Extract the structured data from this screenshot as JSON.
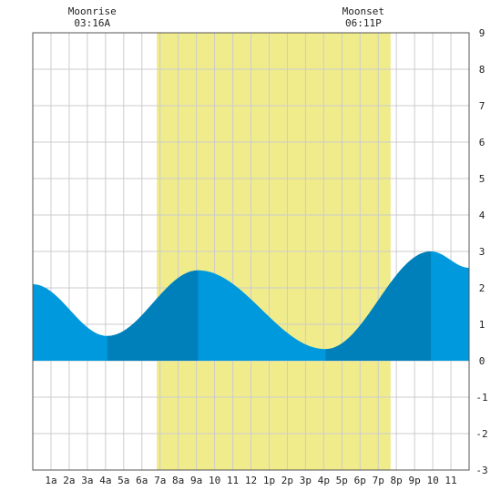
{
  "chart_data": {
    "type": "area",
    "title": "",
    "xlabel": "",
    "ylabel": "",
    "ylim": [
      -3,
      9
    ],
    "xlim": [
      0,
      24
    ],
    "yticks": [
      -3,
      -2,
      -1,
      0,
      1,
      2,
      3,
      4,
      5,
      6,
      7,
      8,
      9
    ],
    "xticks": [
      {
        "x": 1,
        "label": "1a"
      },
      {
        "x": 2,
        "label": "2a"
      },
      {
        "x": 3,
        "label": "3a"
      },
      {
        "x": 4,
        "label": "4a"
      },
      {
        "x": 5,
        "label": "5a"
      },
      {
        "x": 6,
        "label": "6a"
      },
      {
        "x": 7,
        "label": "7a"
      },
      {
        "x": 8,
        "label": "8a"
      },
      {
        "x": 9,
        "label": "9a"
      },
      {
        "x": 10,
        "label": "10"
      },
      {
        "x": 11,
        "label": "11"
      },
      {
        "x": 12,
        "label": "12"
      },
      {
        "x": 13,
        "label": "1p"
      },
      {
        "x": 14,
        "label": "2p"
      },
      {
        "x": 15,
        "label": "3p"
      },
      {
        "x": 16,
        "label": "4p"
      },
      {
        "x": 17,
        "label": "5p"
      },
      {
        "x": 18,
        "label": "6p"
      },
      {
        "x": 19,
        "label": "7p"
      },
      {
        "x": 20,
        "label": "8p"
      },
      {
        "x": 21,
        "label": "9p"
      },
      {
        "x": 22,
        "label": "10"
      },
      {
        "x": 23,
        "label": "11"
      }
    ],
    "grid": true,
    "daylight": {
      "start": 6.82,
      "end": 19.68,
      "color": "#f0ec8c"
    },
    "tide_extremes": [
      {
        "x": 0.0,
        "y": 2.1
      },
      {
        "x": 4.1,
        "y": 0.68
      },
      {
        "x": 9.1,
        "y": 2.48
      },
      {
        "x": 16.1,
        "y": 0.32
      },
      {
        "x": 21.9,
        "y": 3.0
      },
      {
        "x": 24.0,
        "y": 2.55
      }
    ],
    "shading_bands": [
      {
        "start": 4.1,
        "end": 9.1,
        "type": "rising"
      },
      {
        "start": 16.1,
        "end": 21.9,
        "type": "rising"
      }
    ],
    "colors": {
      "fill": "#0099dd",
      "rising": "#0080bb",
      "grid": "#cccccc",
      "frame": "#555555"
    },
    "annotations": [
      {
        "label": "Moonrise",
        "time": "03:16A",
        "x": 3.27
      },
      {
        "label": "Moonset",
        "time": "06:11P",
        "x": 18.18
      }
    ]
  }
}
